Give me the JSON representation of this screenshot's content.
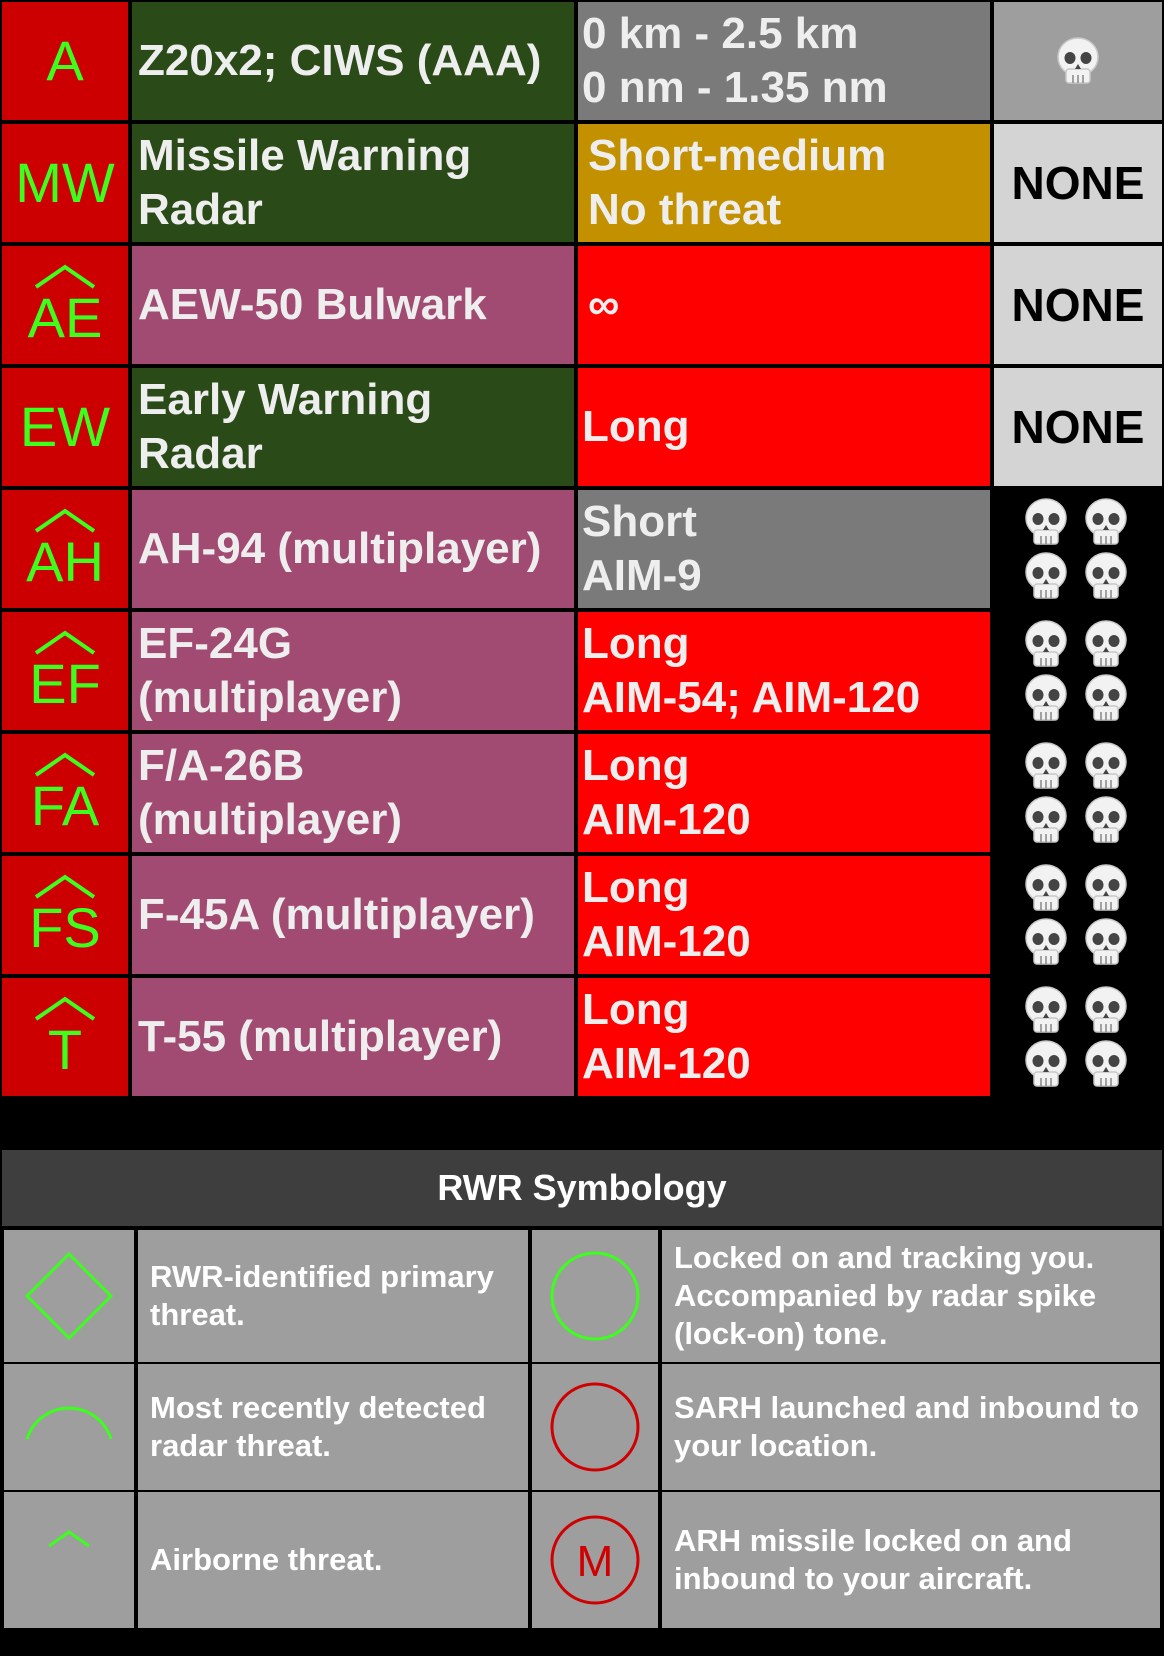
{
  "colors": {
    "symbol_green": "#3cff1e",
    "symbol_bg": "#cc0000",
    "ground_bg": "#2a4a18",
    "air_bg": "#a14a72",
    "range_red": "#ff0000",
    "range_gray": "#7a7a7a",
    "range_gold": "#c39000",
    "legend_red": "#d00000"
  },
  "threats": [
    {
      "symbol": "A",
      "airborne": false,
      "name_lines": [
        "Z20x2; CIWS (AAA)"
      ],
      "range_lines": [
        "0 km - 2.5 km",
        "0 nm - 1.35 nm"
      ],
      "range_color": "gray",
      "lethality": "skull",
      "skulls": 1
    },
    {
      "symbol": "MW",
      "airborne": false,
      "name_lines": [
        "Missile Warning",
        "Radar"
      ],
      "range_lines": [
        "Short-medium",
        "No threat"
      ],
      "range_color": "gold",
      "lethality": "NONE",
      "skulls": 0
    },
    {
      "symbol": "AE",
      "airborne": true,
      "name_lines": [
        "AEW-50 Bulwark"
      ],
      "range_lines": [
        "∞"
      ],
      "range_color": "red",
      "lethality": "NONE",
      "skulls": 0
    },
    {
      "symbol": "EW",
      "airborne": false,
      "name_lines": [
        "Early Warning",
        "Radar"
      ],
      "range_lines": [
        "Long"
      ],
      "range_color": "red",
      "lethality": "NONE",
      "skulls": 0
    },
    {
      "symbol": "AH",
      "airborne": true,
      "name_lines": [
        "AH-94 (multiplayer)"
      ],
      "range_lines": [
        "Short",
        "AIM-9"
      ],
      "range_color": "gray",
      "lethality": "skull",
      "skulls": 4
    },
    {
      "symbol": "EF",
      "airborne": true,
      "name_lines": [
        "EF-24G",
        "(multiplayer)"
      ],
      "range_lines": [
        "Long",
        "AIM-54; AIM-120"
      ],
      "range_color": "red",
      "lethality": "skull",
      "skulls": 4
    },
    {
      "symbol": "FA",
      "airborne": true,
      "name_lines": [
        "F/A-26B",
        "(multiplayer)"
      ],
      "range_lines": [
        "Long",
        "AIM-120"
      ],
      "range_color": "red",
      "lethality": "skull",
      "skulls": 4
    },
    {
      "symbol": "FS",
      "airborne": true,
      "name_lines": [
        "F-45A (multiplayer)"
      ],
      "range_lines": [
        "Long",
        "AIM-120"
      ],
      "range_color": "red",
      "lethality": "skull",
      "skulls": 4
    },
    {
      "symbol": "T",
      "airborne": true,
      "name_lines": [
        "T-55 (multiplayer)"
      ],
      "range_lines": [
        "Long",
        "AIM-120"
      ],
      "range_color": "red",
      "lethality": "skull",
      "skulls": 4
    }
  ],
  "legend": {
    "title": "RWR Symbology",
    "items": [
      {
        "icon": "green-diamond-icon",
        "text": "RWR-identified primary threat."
      },
      {
        "icon": "green-circle-icon",
        "text": "Locked on and tracking you. Accompanied by radar spike (lock-on) tone."
      },
      {
        "icon": "green-arc-icon",
        "text": "Most recently detected radar threat."
      },
      {
        "icon": "red-circle-icon",
        "text": "SARH launched and inbound to your location."
      },
      {
        "icon": "green-caret-icon",
        "text": "Airborne threat."
      },
      {
        "icon": "red-m-circle-icon",
        "text": "ARH missile locked on and inbound to your aircraft.",
        "icon_letter": "M"
      }
    ]
  }
}
